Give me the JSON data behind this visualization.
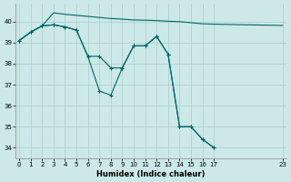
{
  "xlabel": "Humidex (Indice chaleur)",
  "bg_color": "#cce8e8",
  "line_color": "#006666",
  "grid_color": "#aacccc",
  "ylim": [
    33.5,
    40.85
  ],
  "xlim": [
    -0.3,
    23.3
  ],
  "yticks": [
    34,
    35,
    36,
    37,
    38,
    39,
    40
  ],
  "xticks": [
    0,
    1,
    2,
    3,
    4,
    5,
    6,
    7,
    8,
    9,
    10,
    11,
    12,
    13,
    14,
    15,
    16,
    17,
    23
  ],
  "line1_x": [
    0,
    1,
    2,
    3,
    4,
    5,
    6,
    7,
    8,
    9,
    10,
    11,
    12,
    13,
    14,
    15,
    16,
    17,
    23
  ],
  "line1_y": [
    39.1,
    39.5,
    39.8,
    40.42,
    40.35,
    40.3,
    40.25,
    40.2,
    40.15,
    40.12,
    40.08,
    40.07,
    40.05,
    40.02,
    40.0,
    39.95,
    39.9,
    39.88,
    39.82
  ],
  "line2_x": [
    0,
    1,
    2,
    3,
    4,
    5,
    6,
    7,
    8,
    9,
    10,
    11,
    12,
    13,
    14,
    15,
    16,
    17
  ],
  "line2_y": [
    39.1,
    39.5,
    39.8,
    39.85,
    39.75,
    39.6,
    38.35,
    36.7,
    36.5,
    37.8,
    38.85,
    38.85,
    39.3,
    38.45,
    35.0,
    35.0,
    34.4,
    34.0
  ],
  "line3_x": [
    0,
    1,
    2,
    3,
    4,
    5,
    6,
    7,
    8,
    9,
    10,
    11,
    12,
    13,
    14,
    15,
    16,
    17
  ],
  "line3_y": [
    39.1,
    39.5,
    39.8,
    39.85,
    39.75,
    39.6,
    38.35,
    38.35,
    37.8,
    37.8,
    38.85,
    38.85,
    39.3,
    38.45,
    35.0,
    35.0,
    34.4,
    34.0
  ]
}
